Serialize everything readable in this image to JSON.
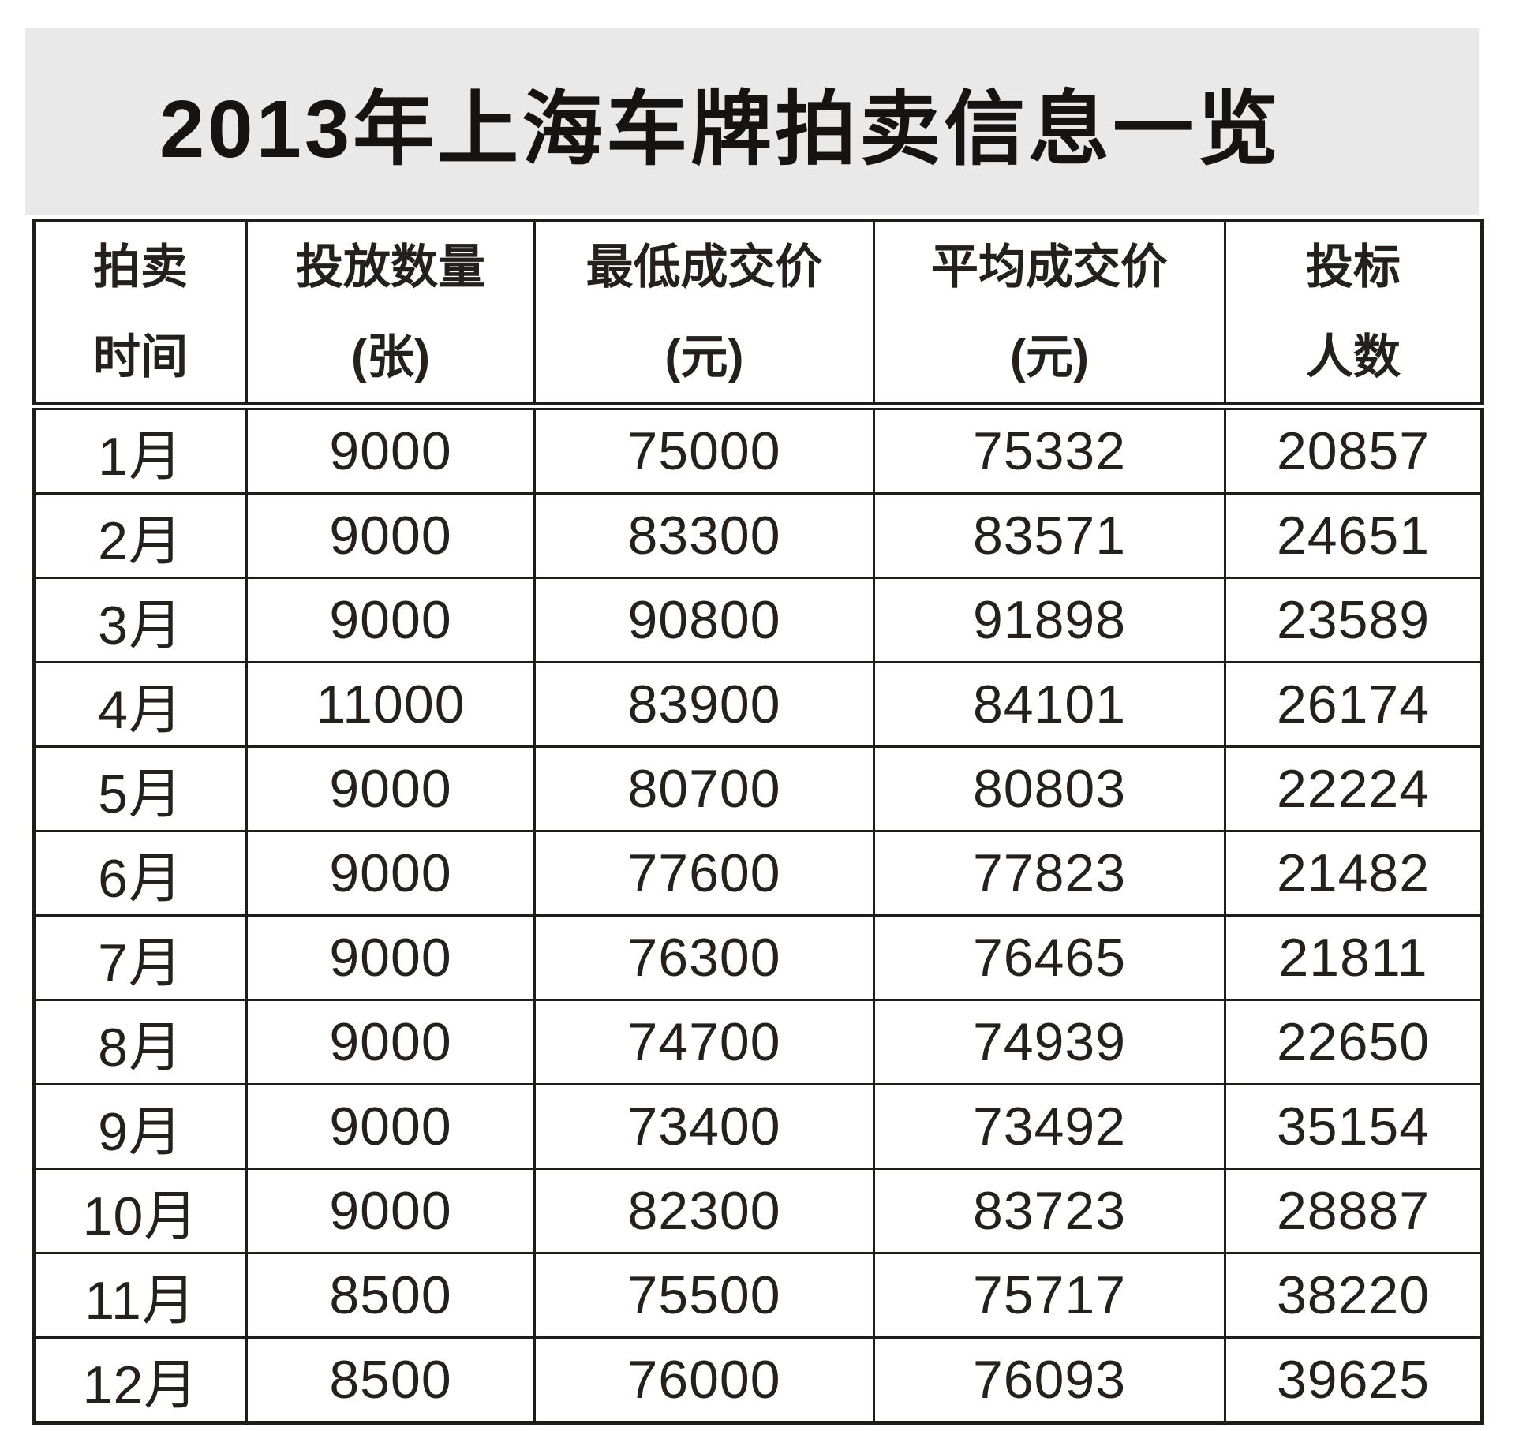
{
  "title": {
    "text": "2013年上海车牌拍卖信息一览",
    "band_color": "#e9e9e9",
    "text_color": "#161412"
  },
  "table": {
    "border_color": "#1d1d1b",
    "columns": [
      {
        "line1": "拍卖",
        "line2": "时间"
      },
      {
        "line1": "投放数量",
        "line2": "(张)"
      },
      {
        "line1": "最低成交价",
        "line2": "(元)"
      },
      {
        "line1": "平均成交价",
        "line2": "(元)"
      },
      {
        "line1": "投标",
        "line2": "人数"
      }
    ],
    "rows": [
      [
        "1月",
        "9000",
        "75000",
        "75332",
        "20857"
      ],
      [
        "2月",
        "9000",
        "83300",
        "83571",
        "24651"
      ],
      [
        "3月",
        "9000",
        "90800",
        "91898",
        "23589"
      ],
      [
        "4月",
        "11000",
        "83900",
        "84101",
        "26174"
      ],
      [
        "5月",
        "9000",
        "80700",
        "80803",
        "22224"
      ],
      [
        "6月",
        "9000",
        "77600",
        "77823",
        "21482"
      ],
      [
        "7月",
        "9000",
        "76300",
        "76465",
        "21811"
      ],
      [
        "8月",
        "9000",
        "74700",
        "74939",
        "22650"
      ],
      [
        "9月",
        "9000",
        "73400",
        "73492",
        "35154"
      ],
      [
        "10月",
        "9000",
        "82300",
        "83723",
        "28887"
      ],
      [
        "11月",
        "8500",
        "75500",
        "75717",
        "38220"
      ],
      [
        "12月",
        "8500",
        "76000",
        "76093",
        "39625"
      ]
    ]
  },
  "chart_data": {
    "type": "table",
    "title": "2013年上海车牌拍卖信息一览",
    "columns": [
      "拍卖时间",
      "投放数量(张)",
      "最低成交价(元)",
      "平均成交价(元)",
      "投标人数"
    ],
    "rows": [
      [
        "1月",
        9000,
        75000,
        75332,
        20857
      ],
      [
        "2月",
        9000,
        83300,
        83571,
        24651
      ],
      [
        "3月",
        9000,
        90800,
        91898,
        23589
      ],
      [
        "4月",
        11000,
        83900,
        84101,
        26174
      ],
      [
        "5月",
        9000,
        80700,
        80803,
        22224
      ],
      [
        "6月",
        9000,
        77600,
        77823,
        21482
      ],
      [
        "7月",
        9000,
        76300,
        76465,
        21811
      ],
      [
        "8月",
        9000,
        74700,
        74939,
        22650
      ],
      [
        "9月",
        9000,
        73400,
        73492,
        35154
      ],
      [
        "10月",
        9000,
        82300,
        83723,
        28887
      ],
      [
        "11月",
        8500,
        75500,
        75717,
        38220
      ],
      [
        "12月",
        8500,
        76000,
        76093,
        39625
      ]
    ]
  }
}
